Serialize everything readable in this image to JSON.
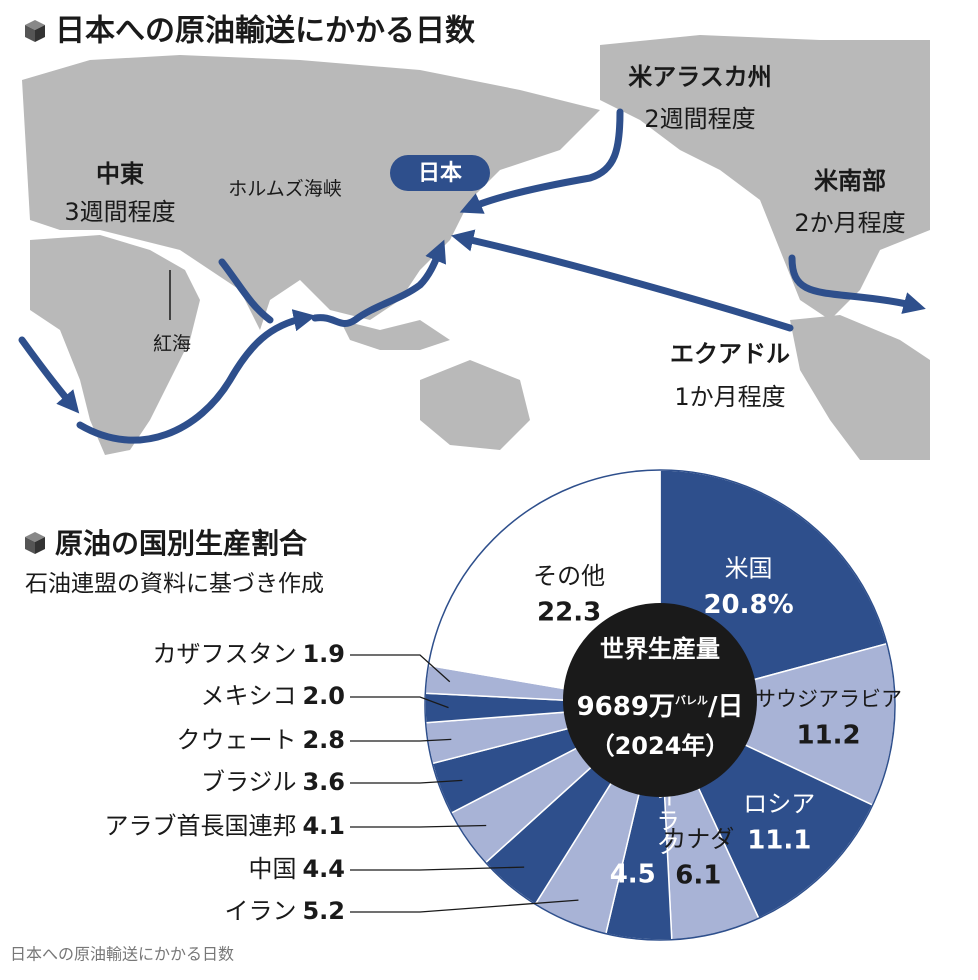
{
  "map": {
    "title": "日本への原油輸送にかかる日数",
    "japan": "日本",
    "routes": [
      {
        "origin": "中東",
        "duration": "3週間程度"
      },
      {
        "origin": "米アラスカ州",
        "duration": "2週間程度"
      },
      {
        "origin": "米南部",
        "duration": "2か月程度"
      },
      {
        "origin": "エクアドル",
        "duration": "1か月程度"
      }
    ],
    "straits": [
      "ホルムズ海峡",
      "紅海"
    ]
  },
  "chart_data": {
    "type": "pie",
    "title": "原油の国別生産割合",
    "subtitle": "石油連盟の資料に基づき作成",
    "center": {
      "title": "世界生産量",
      "amount": "9689万",
      "unit": "バレル",
      "per": "/日",
      "year": "（2024年）"
    },
    "categories": [
      "米国",
      "サウジアラビア",
      "ロシア",
      "カナダ",
      "イラク",
      "イラン",
      "中国",
      "アラブ首長国連邦",
      "ブラジル",
      "クウェート",
      "メキシコ",
      "カザフスタン",
      "その他"
    ],
    "values": [
      20.8,
      11.2,
      11.1,
      6.1,
      4.5,
      5.2,
      4.4,
      4.1,
      3.6,
      2.8,
      2.0,
      1.9,
      22.3
    ],
    "value_labels": [
      "20.8%",
      "11.2",
      "11.1",
      "6.1",
      "4.5",
      "5.2",
      "4.4",
      "4.1",
      "3.6",
      "2.8",
      "2.0",
      "1.9",
      "22.3"
    ],
    "colors": [
      "#2e4f8c",
      "#a8b3d6",
      "#2e4f8c",
      "#a8b3d6",
      "#2e4f8c",
      "#a8b3d6",
      "#2e4f8c",
      "#a8b3d6",
      "#2e4f8c",
      "#a8b3d6",
      "#2e4f8c",
      "#a8b3d6",
      "#ffffff"
    ]
  },
  "caption": "日本への原油輸送にかかる日数"
}
